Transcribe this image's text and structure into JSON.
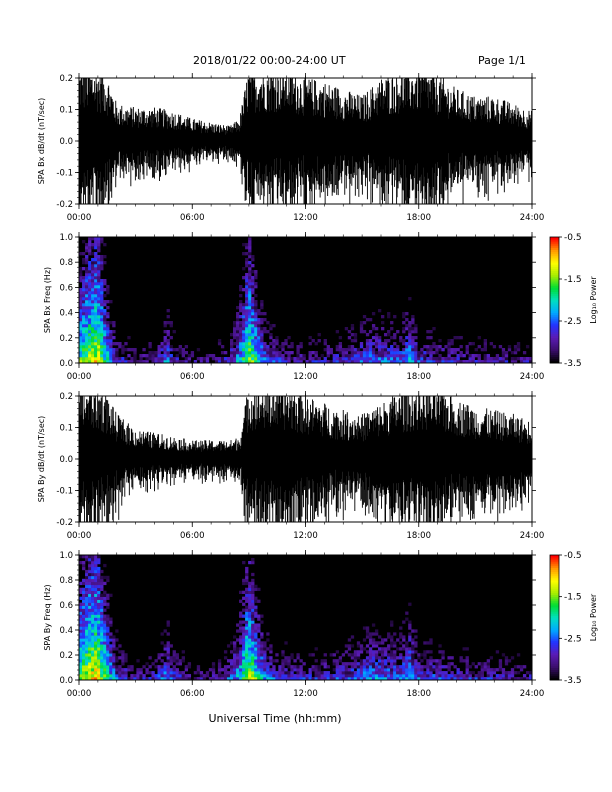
{
  "header": {
    "date_range": "2018/01/22  00:00-24:00 UT",
    "page": "Page 1/1"
  },
  "footer": {
    "xlabel": "Universal Time (hh:mm)"
  },
  "colorbar": {
    "label": "Log₁₀ Power",
    "ticks": [
      "-0.5",
      "-1.5",
      "-2.5",
      "-3.5"
    ],
    "range": [
      -3.5,
      -0.5
    ],
    "colors": [
      "#000000",
      "#3b0e6e",
      "#5a1bb5",
      "#2233ff",
      "#00aaff",
      "#00e0c0",
      "#00dd33",
      "#aaee00",
      "#ffff00",
      "#ff9900",
      "#ff0000"
    ]
  },
  "chart_data": [
    {
      "type": "line",
      "panel": "bx-waveform",
      "ylabel": "SPA Bx dB/dt (nT/sec)",
      "ylim": [
        -0.2,
        0.2
      ],
      "yticks": [
        "0.2",
        "0.1",
        "0.0",
        "-0.1",
        "-0.2"
      ],
      "xlim": [
        "00:00",
        "24:00"
      ],
      "xticks": [
        "00:00",
        "06:00",
        "12:00",
        "18:00",
        "24:00"
      ],
      "envelope": {
        "x_hours": [
          0,
          0.5,
          1,
          1.5,
          2,
          3,
          4,
          5,
          6,
          7,
          8,
          8.5,
          9,
          9.5,
          10,
          11,
          12,
          13,
          14,
          15,
          16,
          17,
          18,
          19,
          20,
          21,
          22,
          23,
          24
        ],
        "amplitude": [
          0.2,
          0.2,
          0.2,
          0.18,
          0.1,
          0.09,
          0.09,
          0.08,
          0.06,
          0.05,
          0.04,
          0.06,
          0.2,
          0.2,
          0.2,
          0.2,
          0.17,
          0.16,
          0.14,
          0.12,
          0.17,
          0.19,
          0.2,
          0.18,
          0.14,
          0.12,
          0.12,
          0.1,
          0.08
        ]
      }
    },
    {
      "type": "heatmap",
      "panel": "bx-spectrogram",
      "ylabel": "SPA Bx Freq (Hz)",
      "ylim": [
        0.0,
        1.0
      ],
      "yticks": [
        "1.0",
        "0.8",
        "0.6",
        "0.4",
        "0.2",
        "0.0"
      ],
      "xlim": [
        "00:00",
        "24:00"
      ],
      "xticks": [
        "00:00",
        "06:00",
        "12:00",
        "18:00",
        "24:00"
      ],
      "zlabel": "Log₁₀ Power",
      "zlim": [
        -3.5,
        -0.5
      ],
      "activity_profile": {
        "x_hours": [
          0,
          0.5,
          1,
          1.5,
          2,
          3,
          4,
          4.7,
          5,
          6,
          7,
          8,
          8.5,
          9,
          9.5,
          10,
          11,
          12,
          13,
          14,
          15,
          15.5,
          16,
          17,
          17.5,
          18,
          19,
          20,
          21,
          22,
          23,
          24
        ],
        "log_power": [
          -1.5,
          -1.0,
          -0.8,
          -1.8,
          -2.6,
          -2.9,
          -2.8,
          -2.2,
          -2.6,
          -3.0,
          -3.0,
          -2.6,
          -2.0,
          -1.0,
          -1.8,
          -2.4,
          -2.7,
          -2.8,
          -2.7,
          -2.6,
          -2.4,
          -2.3,
          -2.3,
          -2.4,
          -2.0,
          -2.5,
          -2.6,
          -2.7,
          -2.8,
          -2.8,
          -2.9,
          -2.9
        ]
      }
    },
    {
      "type": "line",
      "panel": "by-waveform",
      "ylabel": "SPA By dB/dt (nT/sec)",
      "ylim": [
        -0.2,
        0.2
      ],
      "yticks": [
        "0.2",
        "0.1",
        "0.0",
        "-0.1",
        "-0.2"
      ],
      "xlim": [
        "00:00",
        "24:00"
      ],
      "xticks": [
        "00:00",
        "06:00",
        "12:00",
        "18:00",
        "24:00"
      ],
      "envelope": {
        "x_hours": [
          0,
          0.5,
          1,
          1.5,
          2,
          3,
          4,
          5,
          6,
          7,
          8,
          8.5,
          9,
          9.5,
          10,
          11,
          12,
          13,
          14,
          15,
          16,
          17,
          18,
          19,
          20,
          21,
          22,
          23,
          24
        ],
        "amplitude": [
          0.2,
          0.2,
          0.2,
          0.17,
          0.12,
          0.08,
          0.07,
          0.06,
          0.05,
          0.05,
          0.05,
          0.06,
          0.2,
          0.2,
          0.2,
          0.2,
          0.17,
          0.15,
          0.13,
          0.12,
          0.15,
          0.18,
          0.2,
          0.19,
          0.16,
          0.14,
          0.13,
          0.12,
          0.1
        ]
      }
    },
    {
      "type": "heatmap",
      "panel": "by-spectrogram",
      "ylabel": "SPA By Freq (Hz)",
      "ylim": [
        0.0,
        1.0
      ],
      "yticks": [
        "1.0",
        "0.8",
        "0.6",
        "0.4",
        "0.2",
        "0.0"
      ],
      "xlim": [
        "00:00",
        "24:00"
      ],
      "xticks": [
        "00:00",
        "06:00",
        "12:00",
        "18:00",
        "24:00"
      ],
      "zlabel": "Log₁₀ Power",
      "zlim": [
        -3.5,
        -0.5
      ],
      "activity_profile": {
        "x_hours": [
          0,
          0.5,
          1,
          1.5,
          2,
          3,
          4,
          4.7,
          5,
          6,
          7,
          8,
          8.5,
          9,
          9.5,
          10,
          11,
          12,
          13,
          14,
          15,
          15.5,
          16,
          17,
          17.5,
          18,
          19,
          20,
          21,
          22,
          23,
          24
        ],
        "log_power": [
          -1.3,
          -0.8,
          -0.7,
          -1.6,
          -2.4,
          -2.8,
          -2.7,
          -2.1,
          -2.5,
          -2.9,
          -2.9,
          -2.5,
          -1.9,
          -1.0,
          -1.7,
          -2.3,
          -2.6,
          -2.7,
          -2.6,
          -2.5,
          -2.3,
          -2.2,
          -2.2,
          -2.3,
          -1.9,
          -2.4,
          -2.5,
          -2.6,
          -2.7,
          -2.7,
          -2.8,
          -2.8
        ]
      }
    }
  ]
}
